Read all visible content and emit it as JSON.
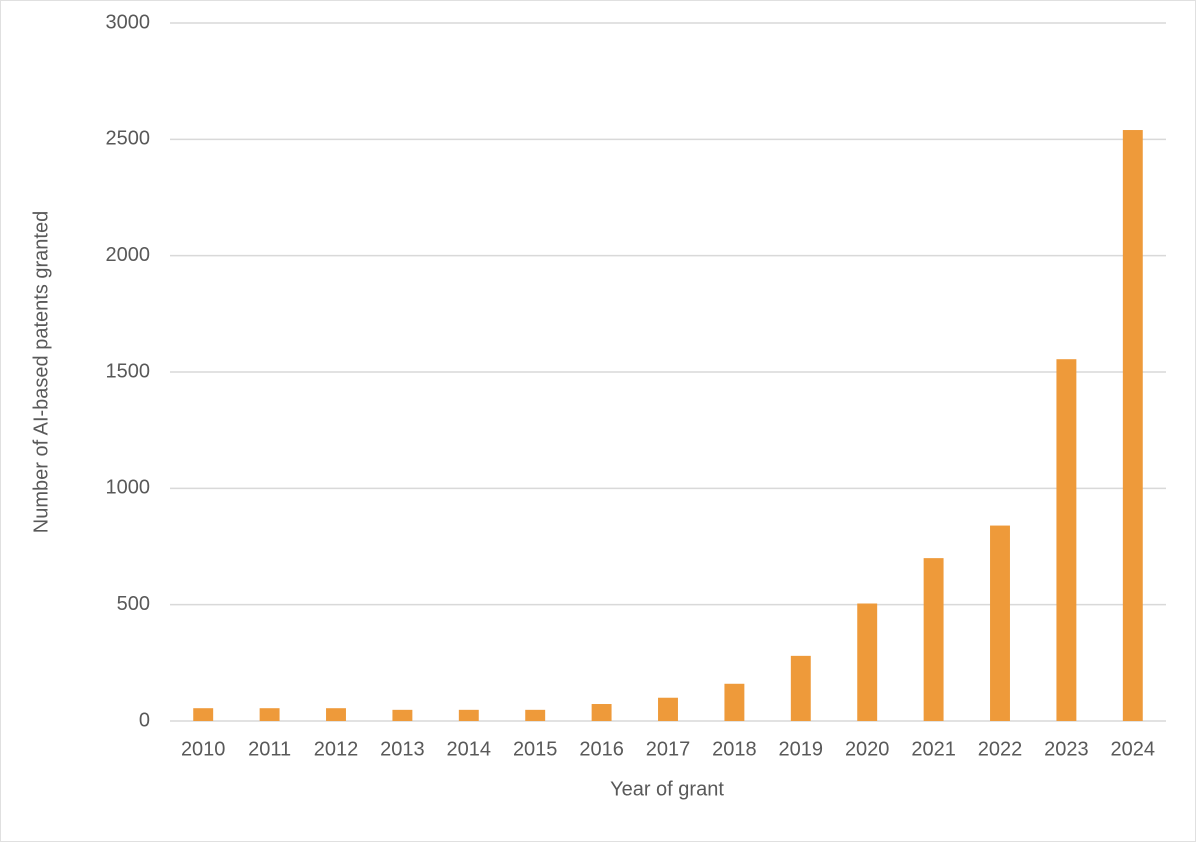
{
  "chart_data": {
    "type": "bar",
    "x_label": "Year of grant",
    "y_label": "Number of AI-based patents granted",
    "categories": [
      "2010",
      "2011",
      "2012",
      "2013",
      "2014",
      "2015",
      "2016",
      "2017",
      "2018",
      "2019",
      "2020",
      "2021",
      "2022",
      "2023",
      "2024"
    ],
    "values": [
      55,
      55,
      55,
      48,
      48,
      48,
      73,
      100,
      160,
      280,
      505,
      700,
      840,
      1555,
      2540
    ],
    "color": "#ee9a3a",
    "ylim": [
      0,
      3000
    ],
    "yticks": [
      0,
      500,
      1000,
      1500,
      2000,
      2500,
      3000
    ],
    "grid": true
  }
}
